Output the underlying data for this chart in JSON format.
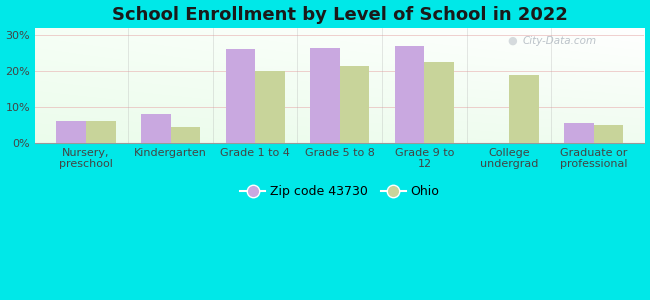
{
  "title": "School Enrollment by Level of School in 2022",
  "categories": [
    "Nursery,\npreschool",
    "Kindergarten",
    "Grade 1 to 4",
    "Grade 5 to 8",
    "Grade 9 to\n12",
    "College\nundergrad",
    "Graduate or\nprofessional"
  ],
  "zip_values": [
    6.0,
    8.0,
    26.0,
    26.5,
    27.0,
    0.0,
    5.5
  ],
  "ohio_values": [
    6.0,
    4.5,
    20.0,
    21.5,
    22.5,
    19.0,
    5.0
  ],
  "zip_color": "#c9a8e0",
  "ohio_color": "#c8d49a",
  "background_outer": "#00e8e8",
  "ylim": [
    0,
    32
  ],
  "yticks": [
    0,
    10,
    20,
    30
  ],
  "ytick_labels": [
    "0%",
    "10%",
    "20%",
    "30%"
  ],
  "title_fontsize": 13,
  "tick_fontsize": 8,
  "legend_fontsize": 9,
  "bar_width": 0.35,
  "watermark": "City-Data.com"
}
